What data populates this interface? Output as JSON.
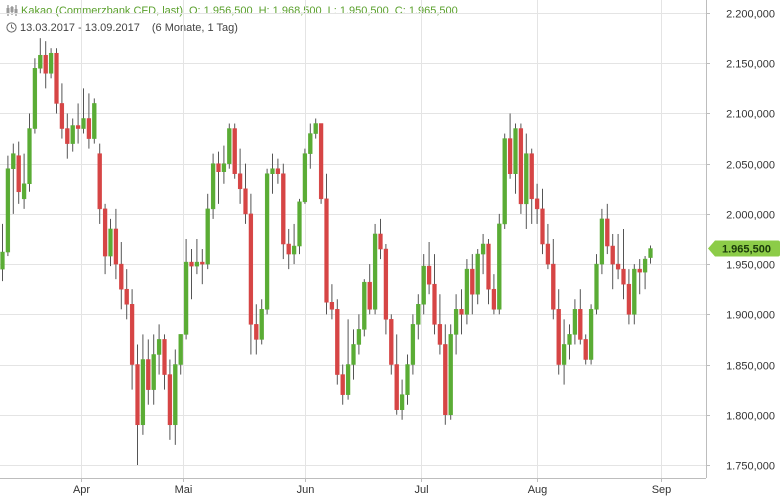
{
  "header": {
    "instrument": "Kakao (Commerzbank CFD, last)",
    "open": "O: 1.956,500",
    "high": "H: 1.968,500",
    "low": "L: 1.950,500",
    "close": "C: 1.965,500",
    "period": "13.03.2017 - 13.09.2017",
    "interval": "(6 Monate, 1 Tag)"
  },
  "last_price_label": "1.965,500",
  "colors": {
    "up": "#5aac35",
    "down": "#d64545",
    "grid": "#e4e4e4",
    "badge": "#8ccc48",
    "axis": "#bdbdbd"
  },
  "chart_data": {
    "type": "candlestick",
    "y_ticks": [
      1750,
      1800,
      1850,
      1900,
      1950,
      2000,
      2050,
      2100,
      2150,
      2200
    ],
    "y_tick_labels": [
      "1.750,000",
      "1.800,000",
      "1.850,000",
      "1.900,000",
      "1.950,000",
      "2.000,000",
      "2.050,000",
      "2.100,000",
      "2.150,000",
      "2.200,000"
    ],
    "ylim": [
      1737,
      2213
    ],
    "x_ticks": [
      {
        "label": "Apr",
        "index": 14.5
      },
      {
        "label": "Mai",
        "index": 33.5
      },
      {
        "label": "Jun",
        "index": 56
      },
      {
        "label": "Jul",
        "index": 77.5
      },
      {
        "label": "Aug",
        "index": 99
      },
      {
        "label": "Sep",
        "index": 122
      }
    ],
    "candles": [
      [
        1945,
        1990,
        1933,
        1962
      ],
      [
        1962,
        2058,
        1958,
        2045
      ],
      [
        2045,
        2070,
        2000,
        2060
      ],
      [
        2058,
        2072,
        2010,
        2022
      ],
      [
        2015,
        2060,
        2005,
        2030
      ],
      [
        2030,
        2100,
        2022,
        2085
      ],
      [
        2085,
        2155,
        2080,
        2145
      ],
      [
        2145,
        2175,
        2140,
        2158
      ],
      [
        2158,
        2172,
        2125,
        2140
      ],
      [
        2140,
        2165,
        2135,
        2160
      ],
      [
        2160,
        2165,
        2100,
        2110
      ],
      [
        2110,
        2130,
        2075,
        2085
      ],
      [
        2085,
        2100,
        2055,
        2070
      ],
      [
        2070,
        2095,
        2062,
        2088
      ],
      [
        2088,
        2110,
        2070,
        2085
      ],
      [
        2085,
        2125,
        2080,
        2095
      ],
      [
        2095,
        2120,
        2065,
        2075
      ],
      [
        2075,
        2115,
        2070,
        2110
      ],
      [
        2060,
        2070,
        1990,
        2005
      ],
      [
        2005,
        2010,
        1940,
        1958
      ],
      [
        1958,
        1995,
        1948,
        1985
      ],
      [
        1985,
        2005,
        1935,
        1950
      ],
      [
        1950,
        1972,
        1905,
        1925
      ],
      [
        1925,
        1945,
        1895,
        1910
      ],
      [
        1910,
        1925,
        1825,
        1850
      ],
      [
        1850,
        1870,
        1750,
        1790
      ],
      [
        1790,
        1880,
        1780,
        1855
      ],
      [
        1855,
        1875,
        1810,
        1825
      ],
      [
        1825,
        1880,
        1810,
        1860
      ],
      [
        1860,
        1890,
        1840,
        1875
      ],
      [
        1875,
        1880,
        1825,
        1840
      ],
      [
        1840,
        1855,
        1775,
        1790
      ],
      [
        1790,
        1865,
        1770,
        1850
      ],
      [
        1850,
        1880,
        1840,
        1880
      ],
      [
        1880,
        1975,
        1875,
        1952
      ],
      [
        1952,
        1965,
        1915,
        1948
      ],
      [
        1948,
        1975,
        1940,
        1952
      ],
      [
        1952,
        1965,
        1930,
        1950
      ],
      [
        1950,
        2020,
        1945,
        2005
      ],
      [
        2005,
        2060,
        1995,
        2050
      ],
      [
        2050,
        2062,
        2010,
        2042
      ],
      [
        2042,
        2068,
        2030,
        2050
      ],
      [
        2050,
        2090,
        2045,
        2085
      ],
      [
        2085,
        2090,
        2035,
        2040
      ],
      [
        2040,
        2065,
        2010,
        2025
      ],
      [
        2025,
        2050,
        1990,
        2000
      ],
      [
        2000,
        2020,
        1860,
        1890
      ],
      [
        1890,
        1910,
        1860,
        1875
      ],
      [
        1875,
        1915,
        1870,
        1905
      ],
      [
        1905,
        2045,
        1900,
        2040
      ],
      [
        2040,
        2060,
        2020,
        2045
      ],
      [
        2045,
        2055,
        2030,
        2040
      ],
      [
        2040,
        2050,
        1955,
        1970
      ],
      [
        1970,
        1985,
        1945,
        1960
      ],
      [
        1960,
        1990,
        1950,
        1968
      ],
      [
        1968,
        2015,
        1960,
        2012
      ],
      [
        2012,
        2065,
        2010,
        2060
      ],
      [
        2060,
        2090,
        2045,
        2080
      ],
      [
        2080,
        2095,
        2075,
        2090
      ],
      [
        2090,
        2090,
        2010,
        2015
      ],
      [
        2015,
        2040,
        1900,
        1912
      ],
      [
        1912,
        1930,
        1895,
        1905
      ],
      [
        1905,
        1915,
        1830,
        1840
      ],
      [
        1840,
        1850,
        1810,
        1820
      ],
      [
        1820,
        1895,
        1815,
        1850
      ],
      [
        1850,
        1885,
        1835,
        1870
      ],
      [
        1870,
        1900,
        1860,
        1885
      ],
      [
        1885,
        1935,
        1878,
        1932
      ],
      [
        1932,
        1950,
        1900,
        1905
      ],
      [
        1905,
        1990,
        1900,
        1980
      ],
      [
        1980,
        1995,
        1955,
        1965
      ],
      [
        1965,
        1970,
        1880,
        1895
      ],
      [
        1895,
        1900,
        1840,
        1850
      ],
      [
        1850,
        1880,
        1800,
        1805
      ],
      [
        1805,
        1835,
        1795,
        1820
      ],
      [
        1820,
        1860,
        1810,
        1850
      ],
      [
        1850,
        1900,
        1840,
        1890
      ],
      [
        1890,
        1920,
        1875,
        1910
      ],
      [
        1910,
        1960,
        1900,
        1948
      ],
      [
        1948,
        1972,
        1920,
        1930
      ],
      [
        1930,
        1960,
        1880,
        1890
      ],
      [
        1890,
        1920,
        1860,
        1870
      ],
      [
        1870,
        1890,
        1790,
        1800
      ],
      [
        1800,
        1890,
        1795,
        1880
      ],
      [
        1880,
        1920,
        1860,
        1905
      ],
      [
        1905,
        1925,
        1880,
        1900
      ],
      [
        1900,
        1955,
        1890,
        1945
      ],
      [
        1945,
        1960,
        1900,
        1920
      ],
      [
        1920,
        1965,
        1910,
        1960
      ],
      [
        1960,
        1980,
        1940,
        1970
      ],
      [
        1970,
        1975,
        1910,
        1925
      ],
      [
        1925,
        1940,
        1900,
        1905
      ],
      [
        1905,
        2000,
        1900,
        1990
      ],
      [
        1990,
        2080,
        1985,
        2075
      ],
      [
        2075,
        2100,
        2035,
        2040
      ],
      [
        2040,
        2090,
        2020,
        2085
      ],
      [
        2085,
        2090,
        2000,
        2010
      ],
      [
        2010,
        2080,
        1985,
        2060
      ],
      [
        2060,
        2065,
        1990,
        2015
      ],
      [
        2015,
        2030,
        1990,
        2005
      ],
      [
        2005,
        2025,
        1960,
        1970
      ],
      [
        1970,
        1990,
        1945,
        1950
      ],
      [
        1950,
        1975,
        1895,
        1905
      ],
      [
        1905,
        1925,
        1840,
        1850
      ],
      [
        1850,
        1895,
        1830,
        1870
      ],
      [
        1870,
        1890,
        1855,
        1880
      ],
      [
        1880,
        1915,
        1870,
        1905
      ],
      [
        1905,
        1925,
        1870,
        1875
      ],
      [
        1875,
        1880,
        1850,
        1855
      ],
      [
        1855,
        1910,
        1850,
        1905
      ],
      [
        1905,
        1960,
        1900,
        1950
      ],
      [
        1950,
        2005,
        1940,
        1995
      ],
      [
        1995,
        2010,
        1960,
        1968
      ],
      [
        1968,
        1980,
        1925,
        1950
      ],
      [
        1950,
        1980,
        1935,
        1945
      ],
      [
        1945,
        1985,
        1915,
        1930
      ],
      [
        1930,
        1945,
        1890,
        1900
      ],
      [
        1900,
        1950,
        1890,
        1945
      ],
      [
        1945,
        1955,
        1920,
        1942
      ],
      [
        1942,
        1958,
        1925,
        1955
      ],
      [
        1956.5,
        1968.5,
        1950.5,
        1965.5
      ]
    ]
  }
}
